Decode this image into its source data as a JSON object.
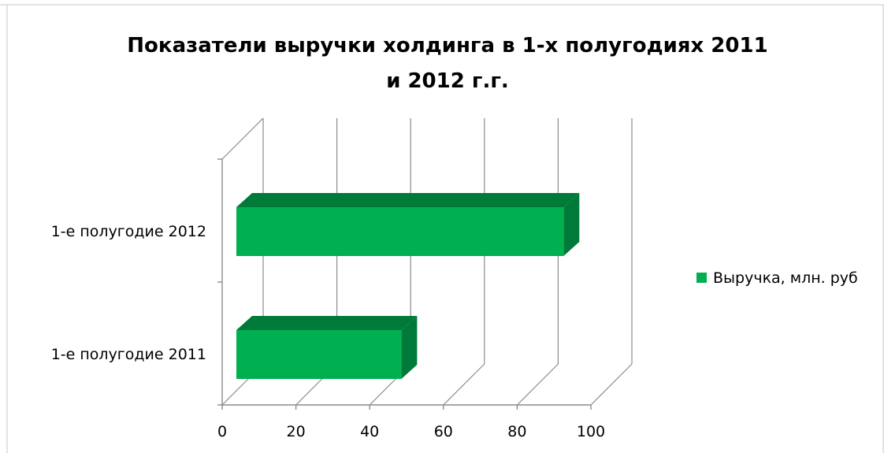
{
  "chart_data": {
    "type": "bar",
    "orientation": "horizontal",
    "style": "3d",
    "title": "Показатели выручки холдинга в 1-х полугодиях 2011 и 2012  г.г.",
    "title_lines": [
      "Показатели выручки холдинга в 1-х полугодиях 2011",
      "и 2012  г.г."
    ],
    "categories": [
      "1-е полугодие 2011",
      "1-е полугодие 2012"
    ],
    "series": [
      {
        "name": "Выручка, млн. руб",
        "values": [
          52,
          96
        ],
        "color": "#00b050",
        "side_color": "#007a38"
      }
    ],
    "xlim": [
      0,
      100
    ],
    "x_ticks": [
      "0",
      "20",
      "40",
      "60",
      "80",
      "100"
    ],
    "grid": true,
    "legend_position": "right"
  }
}
